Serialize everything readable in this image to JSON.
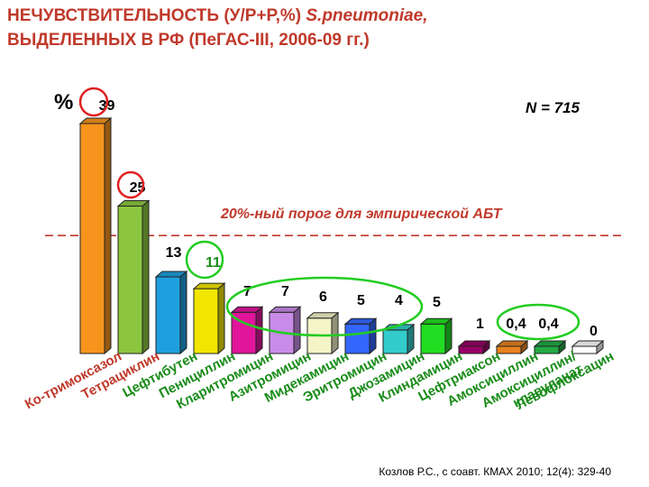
{
  "title": {
    "line1": "НЕЧУВСТВИТЕЛЬНОСТЬ (У/Р+Р,%)",
    "organism": "S.pneumoniae,",
    "line2": "ВЫДЕЛЕННЫХ В РФ (ПеГАС-III, 2006-09 гг.)"
  },
  "y_unit": "%",
  "n_label": "N = 715",
  "threshold_label": "20%-ный порог для эмпирической АБТ",
  "source": "Козлов Р.С., с соавт. КМАХ 2010; 12(4): 329-40",
  "chart_data": {
    "type": "bar",
    "style": "3d",
    "categories": [
      "Ко-тримоксазол",
      "Тетрациклин",
      "Цефтибутен",
      "Пенициллин",
      "Кларитромицин",
      "Азитромицин",
      "Мидекамицин",
      "Эритромицин",
      "Джозамицин",
      "Клиндамицин",
      "Цефтриаксон",
      "Амоксициллин",
      "Амоксициллин/ клавуланат",
      "Левофлоксацин"
    ],
    "values": [
      39,
      25,
      13,
      11,
      7,
      7,
      6,
      5,
      4,
      5,
      1,
      0.4,
      0.4,
      0
    ],
    "value_labels": [
      "39",
      "25",
      "13",
      "11",
      "7",
      "7",
      "6",
      "5",
      "4",
      "5",
      "1",
      "0,4",
      "0,4",
      "0"
    ],
    "colors": [
      "#f7941d",
      "#8cc63f",
      "#1ea0e0",
      "#f2e600",
      "#e0159b",
      "#c98be8",
      "#f4f4c8",
      "#3366ff",
      "#33cccc",
      "#22dd22",
      "#990066",
      "#e8821e",
      "#22aa44",
      "#ffffff"
    ],
    "circled": [
      0,
      1,
      3
    ],
    "grouped_circles": [
      [
        4,
        8
      ],
      [
        11,
        12
      ]
    ],
    "threshold": 20,
    "ylim": [
      0,
      40
    ]
  }
}
